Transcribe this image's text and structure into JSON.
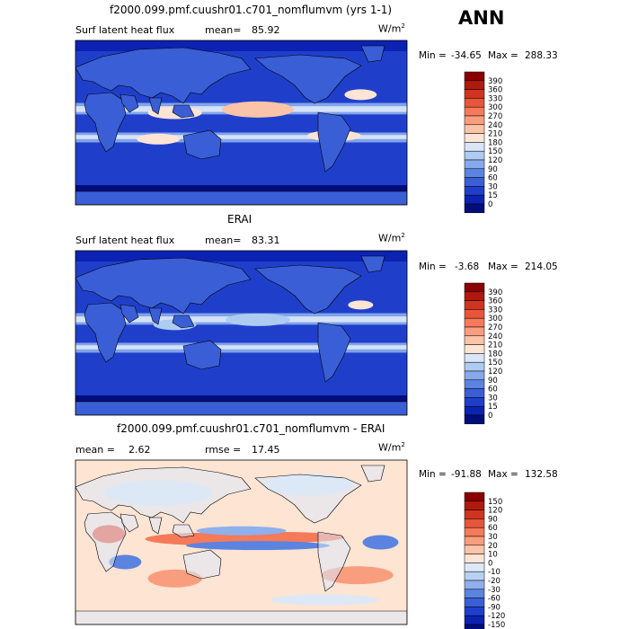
{
  "season": "ANN",
  "panels": [
    {
      "title": "f2000.099.pmf.cuushr01.c701_nomflumvm (yrs 1-1)",
      "left_label": "Surf latent heat flux",
      "mean_label": "mean=",
      "mean_value": "85.92",
      "units": "W/m",
      "units_sup": "2",
      "min_label": "Min =",
      "min_value": "-34.65",
      "max_label": "Max =",
      "max_value": "288.33",
      "levels": [
        "390",
        "360",
        "330",
        "300",
        "270",
        "240",
        "210",
        "180",
        "150",
        "120",
        "90",
        "60",
        "30",
        "15",
        "0"
      ],
      "colors": [
        "#8b0000",
        "#b01a0e",
        "#cf3420",
        "#e8553a",
        "#f47a5a",
        "#f89e7e",
        "#fbc3a7",
        "#fde4d3",
        "#d9e6f7",
        "#aecbf1",
        "#86a9eb",
        "#5b83e0",
        "#3a5ed6",
        "#1f3fcb",
        "#0b22b2",
        "#000d7a"
      ],
      "map_style": "flux"
    },
    {
      "title": "ERAI",
      "left_label": "Surf latent heat flux",
      "mean_label": "mean=",
      "mean_value": "83.31",
      "units": "W/m",
      "units_sup": "2",
      "min_label": "Min =",
      "min_value": "-3.68",
      "max_label": "Max =",
      "max_value": "214.05",
      "levels": [
        "390",
        "360",
        "330",
        "300",
        "270",
        "240",
        "210",
        "180",
        "150",
        "120",
        "90",
        "60",
        "30",
        "15",
        "0"
      ],
      "colors": [
        "#8b0000",
        "#b01a0e",
        "#cf3420",
        "#e8553a",
        "#f47a5a",
        "#f89e7e",
        "#fbc3a7",
        "#fde4d3",
        "#d9e6f7",
        "#aecbf1",
        "#86a9eb",
        "#5b83e0",
        "#3a5ed6",
        "#1f3fcb",
        "#0b22b2",
        "#000d7a"
      ],
      "map_style": "flux"
    },
    {
      "title": "f2000.099.pmf.cuushr01.c701_nomflumvm - ERAI",
      "left_label": "mean =",
      "mean_label": "",
      "mean_value": "2.62",
      "rmse_label": "rmse =",
      "rmse_value": "17.45",
      "units": "W/m",
      "units_sup": "2",
      "min_label": "Min =",
      "min_value": "-91.88",
      "max_label": "Max =",
      "max_value": "132.58",
      "levels": [
        "150",
        "120",
        "90",
        "60",
        "30",
        "20",
        "10",
        "0",
        "-10",
        "-20",
        "-30",
        "-60",
        "-90",
        "-120",
        "-150"
      ],
      "colors": [
        "#8b0000",
        "#b01a0e",
        "#cf3420",
        "#e8553a",
        "#f47a5a",
        "#f89e7e",
        "#fbc3a7",
        "#fde4d3",
        "#dde8f7",
        "#b9d0f2",
        "#8eb0ec",
        "#5b83e0",
        "#3a5ed6",
        "#1f3fcb",
        "#0b22b2",
        "#000d7a"
      ],
      "map_style": "diff"
    }
  ]
}
